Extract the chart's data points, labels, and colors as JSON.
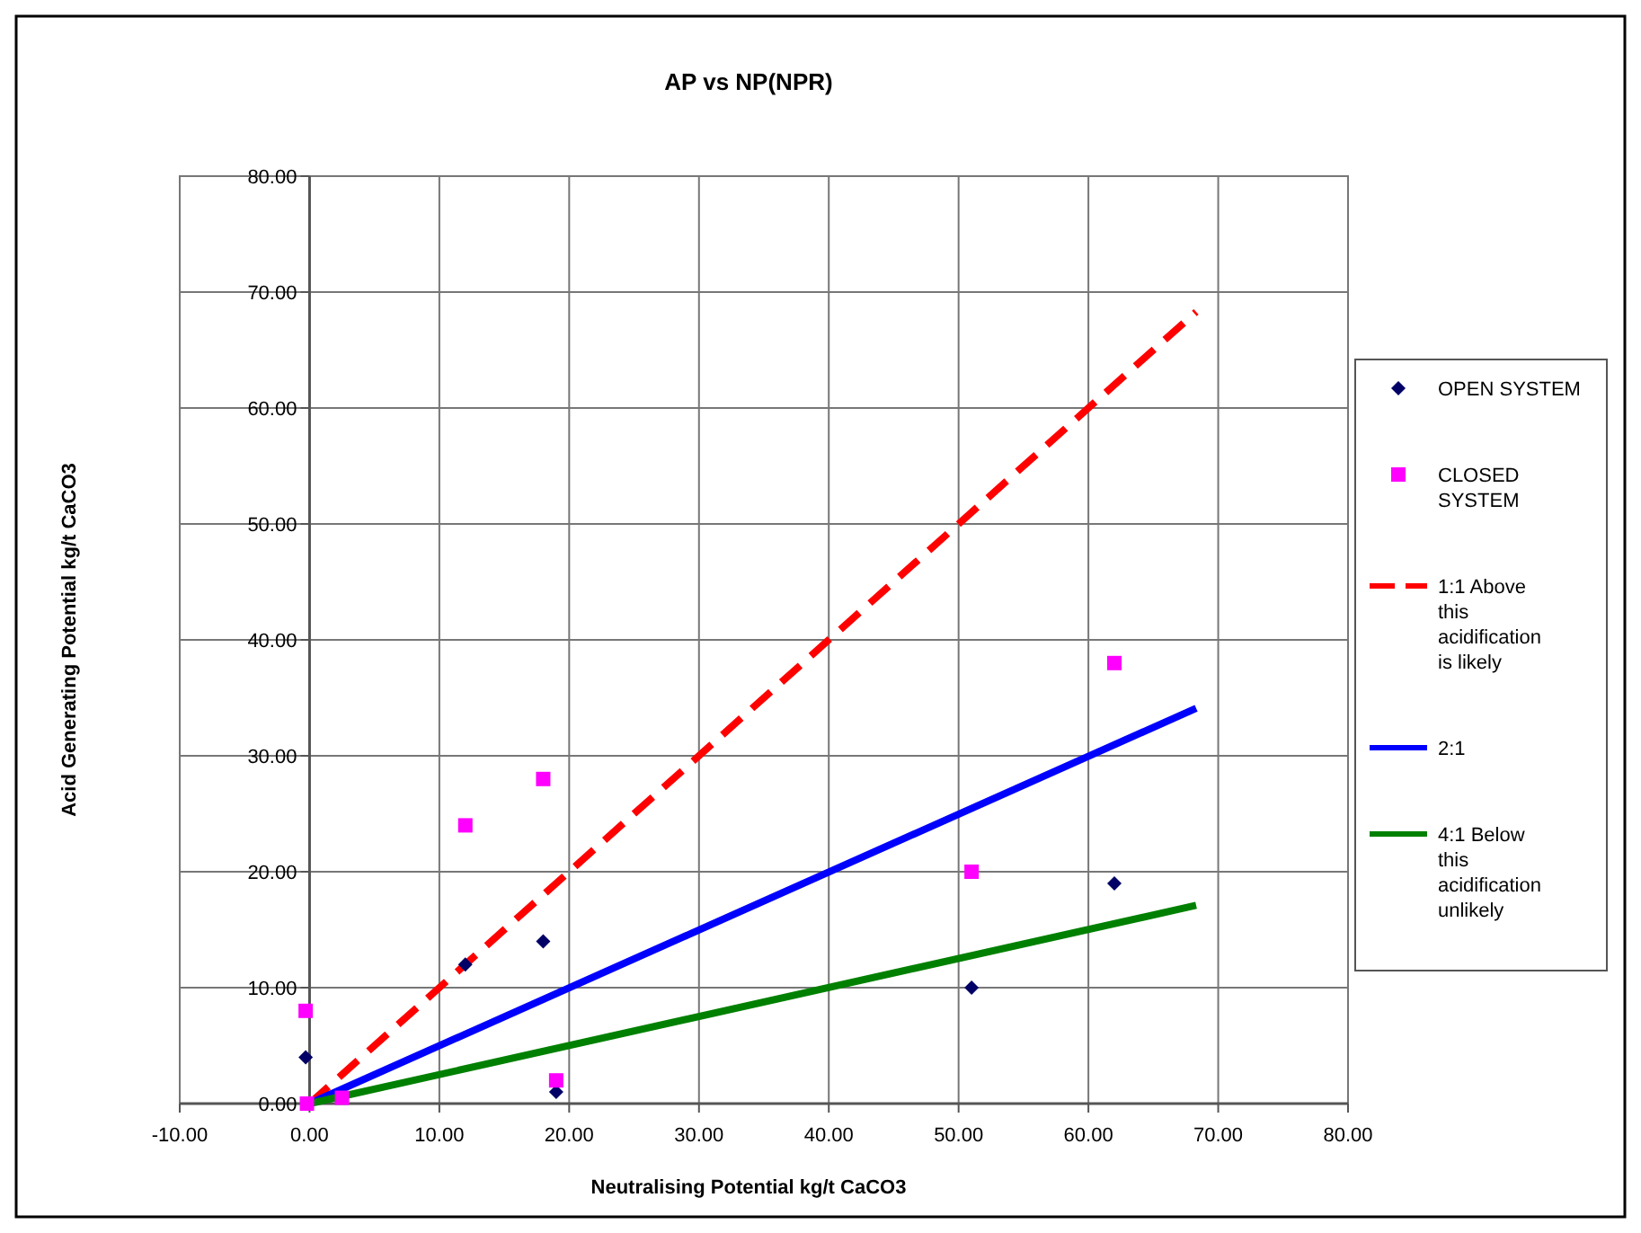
{
  "chart_data": {
    "type": "scatter",
    "title": "AP vs NP(NPR)",
    "xlabel": "Neutralising Potential kg/t CaCO3",
    "ylabel": "Acid Generating Potential kg/t CaCO3",
    "xlim": [
      -10,
      80
    ],
    "ylim": [
      0,
      80
    ],
    "xticks": [
      {
        "value": -10,
        "label": "-10.00"
      },
      {
        "value": 0,
        "label": "0.00"
      },
      {
        "value": 10,
        "label": "10.00"
      },
      {
        "value": 20,
        "label": "20.00"
      },
      {
        "value": 30,
        "label": "30.00"
      },
      {
        "value": 40,
        "label": "40.00"
      },
      {
        "value": 50,
        "label": "50.00"
      },
      {
        "value": 60,
        "label": "60.00"
      },
      {
        "value": 70,
        "label": "70.00"
      },
      {
        "value": 80,
        "label": "80.00"
      }
    ],
    "yticks": [
      {
        "value": 0,
        "label": "0.00"
      },
      {
        "value": 10,
        "label": "10.00"
      },
      {
        "value": 20,
        "label": "20.00"
      },
      {
        "value": 30,
        "label": "30.00"
      },
      {
        "value": 40,
        "label": "40.00"
      },
      {
        "value": 50,
        "label": "50.00"
      },
      {
        "value": 60,
        "label": "60.00"
      },
      {
        "value": 70,
        "label": "70.00"
      },
      {
        "value": 80,
        "label": "80.00"
      }
    ],
    "grid": true,
    "legend": "right",
    "series": [
      {
        "name": "OPEN SYSTEM",
        "marker": "diamond",
        "color": "#000066",
        "x": [
          -0.3,
          12,
          18,
          19,
          51,
          62
        ],
        "values": [
          4,
          12,
          14,
          1,
          10,
          19
        ]
      },
      {
        "name": "CLOSED SYSTEM",
        "marker": "square",
        "color": "#ff00ff",
        "x": [
          -0.3,
          -0.2,
          2.5,
          12,
          18,
          19,
          51,
          62
        ],
        "values": [
          8,
          0,
          0.5,
          24,
          28,
          2,
          20,
          38
        ]
      },
      {
        "name": "1:1 Above this acidification is likely",
        "type": "line",
        "line_style": "dashed",
        "color": "#ff0000",
        "x": [
          0,
          68.3
        ],
        "values": [
          0,
          68.3
        ]
      },
      {
        "name": "2:1",
        "type": "line",
        "line_style": "solid",
        "color": "#0000ff",
        "x": [
          0,
          68.3
        ],
        "values": [
          0,
          34.1
        ]
      },
      {
        "name": "4:1 Below this acidification unlikely",
        "type": "line",
        "line_style": "solid",
        "color": "#008000",
        "x": [
          0,
          68.3
        ],
        "values": [
          0,
          17.1
        ]
      }
    ]
  }
}
